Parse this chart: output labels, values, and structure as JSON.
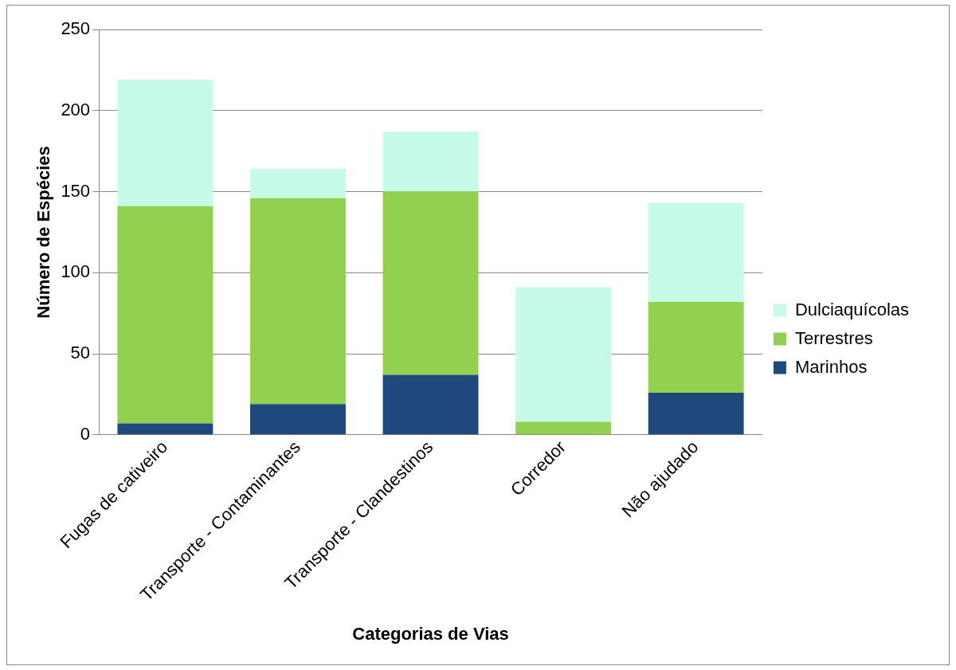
{
  "chart_data": {
    "type": "bar",
    "stacked": true,
    "xlabel": "Categorias de Vias",
    "ylabel": "Número de Espécies",
    "categories": [
      "Fugas de cativeiro",
      "Transporte - Contaminantes",
      "Transporte - Clandestinos",
      "Corredor",
      "Não ajudado"
    ],
    "series": [
      {
        "name": "Marinhos",
        "color": "#1f497d",
        "values": [
          7,
          19,
          37,
          0,
          26
        ]
      },
      {
        "name": "Terrestres",
        "color": "#92d050",
        "values": [
          134,
          127,
          113,
          8,
          56
        ]
      },
      {
        "name": "Dulciaquícolas",
        "color": "#c6fbe8",
        "values": [
          78,
          18,
          37,
          83,
          61
        ]
      }
    ],
    "ylim": [
      0,
      250
    ],
    "yticks": [
      0,
      50,
      100,
      150,
      200,
      250
    ],
    "grid": "y",
    "legend": "right"
  }
}
